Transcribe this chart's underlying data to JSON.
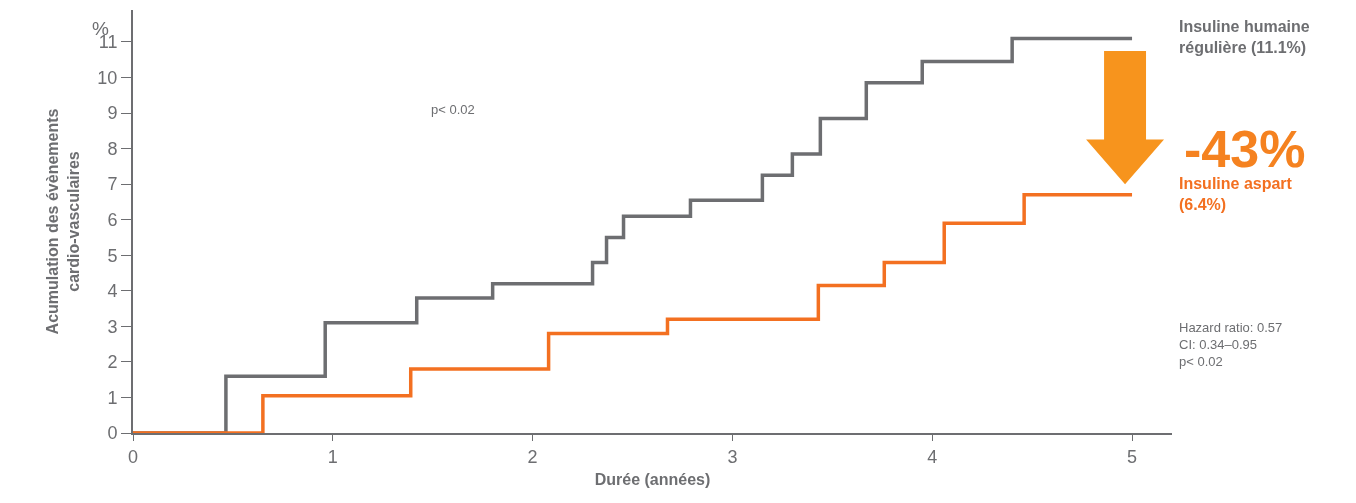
{
  "chart_data": {
    "type": "step",
    "xlabel": "Durée (années)",
    "ylabel": "Acumulation des évènements\ncardio-vasculaires",
    "xlim": [
      0,
      5.2
    ],
    "xticks": [
      0,
      1,
      2,
      3,
      4,
      5
    ],
    "ylim": [
      0,
      11.9
    ],
    "yticks": [
      0,
      1,
      2,
      3,
      4,
      5,
      6,
      7,
      8,
      9,
      10,
      11
    ],
    "legend": false,
    "series": [
      {
        "name": "Insuline humaine régulière (11.1%)",
        "color": "#6d6e71",
        "x": [
          0,
          0.465,
          0.962,
          1.42,
          1.8,
          2.3,
          2.37,
          2.455,
          2.79,
          3.15,
          3.3,
          3.44,
          3.67,
          3.95,
          4.4,
          5.0
        ],
        "values": [
          0,
          1.6,
          3.1,
          3.8,
          4.2,
          4.8,
          5.5,
          6.1,
          6.55,
          7.25,
          7.85,
          8.85,
          9.85,
          10.45,
          11.1,
          11.1
        ]
      },
      {
        "name": "Insuline aspart (6.4%)",
        "color": "#f37021",
        "x": [
          0,
          0.65,
          1.39,
          2.08,
          2.675,
          3.43,
          3.76,
          4.06,
          4.46,
          5.0
        ],
        "values": [
          0,
          1.05,
          1.8,
          2.8,
          3.2,
          4.15,
          4.8,
          5.9,
          6.7,
          6.7
        ]
      }
    ],
    "annotations": [
      "%",
      "p< 0.02",
      "-43%",
      "Hazard ratio: 0.57\nCI: 0.34–0.95\np< 0.02"
    ]
  }
}
